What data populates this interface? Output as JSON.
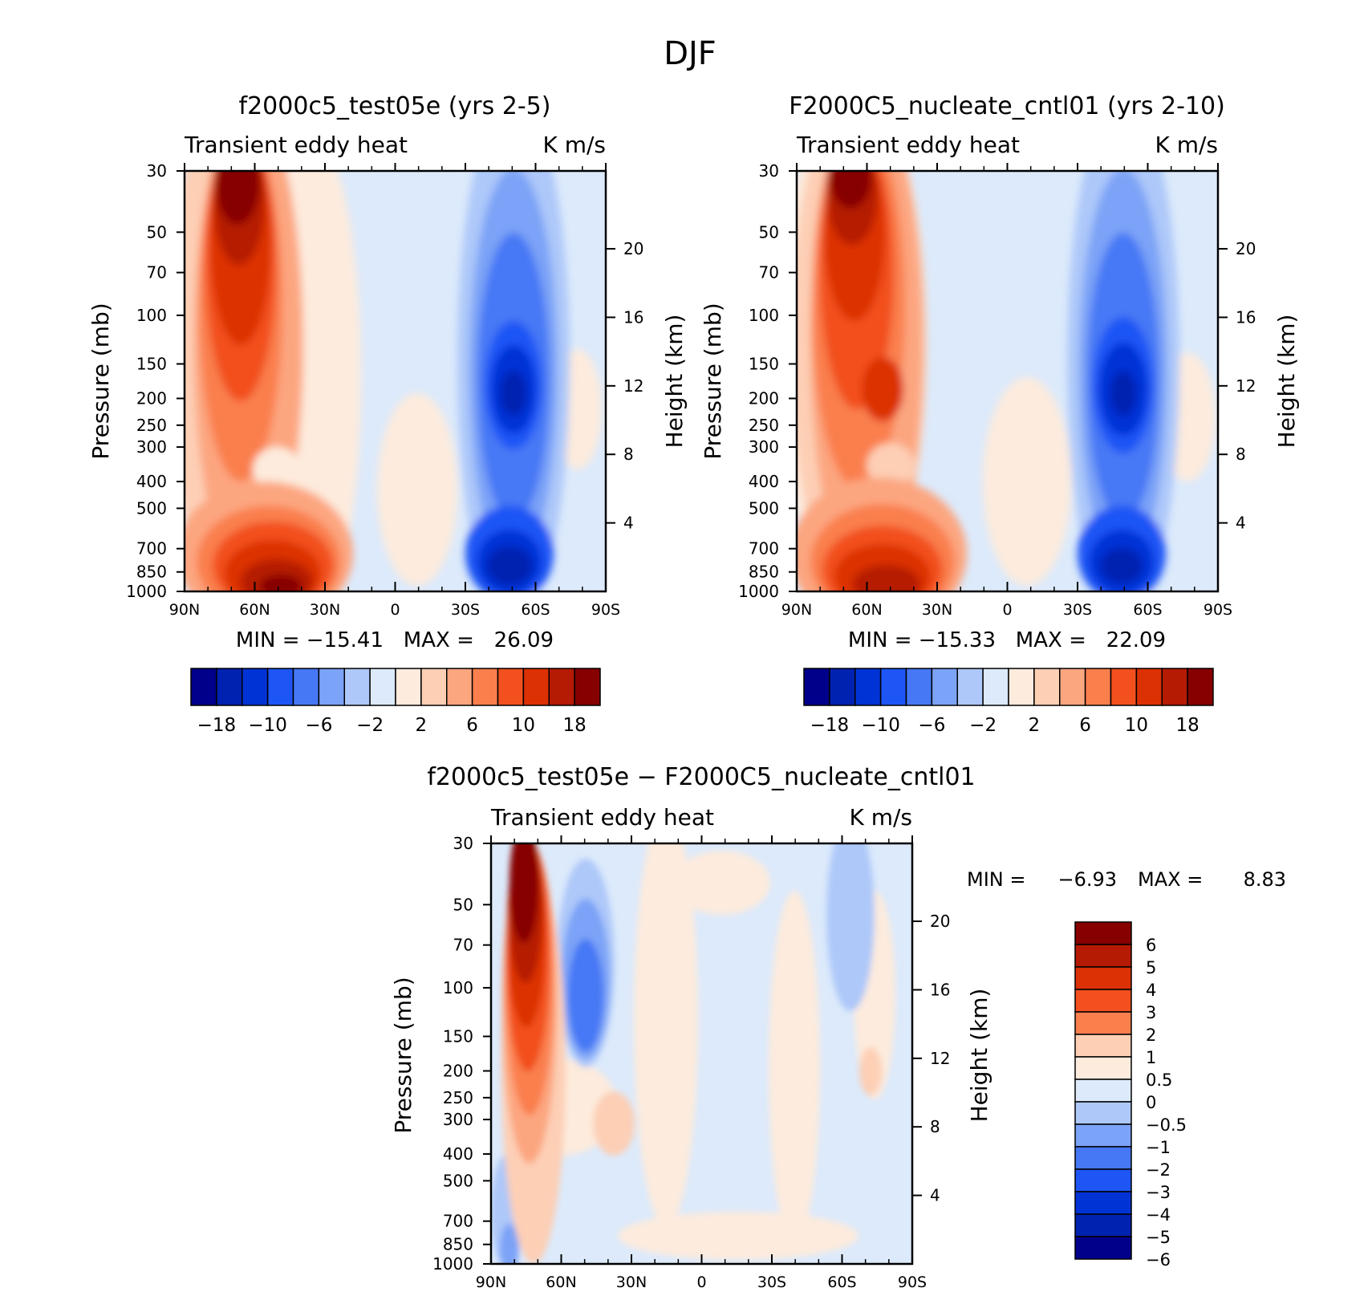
{
  "figure": {
    "title": "DJF"
  },
  "chart_data": [
    {
      "type": "contour",
      "title": "f2000c5_test05e (yrs 2-5)",
      "left_string": "Transient eddy heat",
      "right_string": "K m/s",
      "ylabel": "Pressure (mb)",
      "ylabel_right": "Height (km)",
      "x_ticks": [
        "90N",
        "60N",
        "30N",
        "0",
        "30S",
        "60S",
        "90S"
      ],
      "y_ticks": [
        "30",
        "50",
        "70",
        "100",
        "150",
        "200",
        "250",
        "300",
        "400",
        "500",
        "700",
        "850",
        "1000"
      ],
      "height_ticks": [
        "20",
        "16",
        "12",
        "8",
        "4"
      ],
      "min_max": "MIN = −15.41   MAX =   26.09",
      "colorbar": {
        "colors": [
          "#00008B",
          "#0022B0",
          "#0033D6",
          "#1E55F5",
          "#4678F5",
          "#7BA3F7",
          "#ADC8F9",
          "#DCEAFB",
          "#FDEBDD",
          "#FDCFB5",
          "#FCA680",
          "#FA7F4D",
          "#F2501E",
          "#DC3005",
          "#B51A02",
          "#870000"
        ],
        "labels": [
          "−18",
          "−10",
          "−6",
          "−2",
          "2",
          "6",
          "10",
          "18"
        ]
      }
    },
    {
      "type": "contour",
      "title": "F2000C5_nucleate_cntl01 (yrs 2-10)",
      "left_string": "Transient eddy heat",
      "right_string": "K m/s",
      "ylabel": "Pressure (mb)",
      "ylabel_right": "Height (km)",
      "x_ticks": [
        "90N",
        "60N",
        "30N",
        "0",
        "30S",
        "60S",
        "90S"
      ],
      "y_ticks": [
        "30",
        "50",
        "70",
        "100",
        "150",
        "200",
        "250",
        "300",
        "400",
        "500",
        "700",
        "850",
        "1000"
      ],
      "height_ticks": [
        "20",
        "16",
        "12",
        "8",
        "4"
      ],
      "min_max": "MIN = −15.33   MAX =   22.09",
      "colorbar": {
        "colors": [
          "#00008B",
          "#0022B0",
          "#0033D6",
          "#1E55F5",
          "#4678F5",
          "#7BA3F7",
          "#ADC8F9",
          "#DCEAFB",
          "#FDEBDD",
          "#FDCFB5",
          "#FCA680",
          "#FA7F4D",
          "#F2501E",
          "#DC3005",
          "#B51A02",
          "#870000"
        ],
        "labels": [
          "−18",
          "−10",
          "−6",
          "−2",
          "2",
          "6",
          "10",
          "18"
        ]
      }
    },
    {
      "type": "contour",
      "title": "f2000c5_test05e − F2000C5_nucleate_cntl01",
      "left_string": "Transient eddy heat",
      "right_string": "K m/s",
      "ylabel": "Pressure (mb)",
      "ylabel_right": "Height (km)",
      "x_ticks": [
        "90N",
        "60N",
        "30N",
        "0",
        "30S",
        "60S",
        "90S"
      ],
      "y_ticks": [
        "30",
        "50",
        "70",
        "100",
        "150",
        "200",
        "250",
        "300",
        "400",
        "500",
        "700",
        "850",
        "1000"
      ],
      "height_ticks": [
        "20",
        "16",
        "12",
        "8",
        "4"
      ],
      "min": "−6.93",
      "max": "8.83",
      "min_label": "MIN =",
      "max_label": "MAX =",
      "colorbar": {
        "colors": [
          "#870000",
          "#B51A02",
          "#DC3005",
          "#F2501E",
          "#FA7F4D",
          "#FDCFB5",
          "#FDEBDD",
          "#DCEAFB",
          "#ADC8F9",
          "#7BA3F7",
          "#4678F5",
          "#1E55F5",
          "#0033D6",
          "#0022B0",
          "#00008B"
        ],
        "labels": [
          "6",
          "5",
          "4",
          "3",
          "2",
          "1",
          "0.5",
          "0",
          "−0.5",
          "−1",
          "−2",
          "−3",
          "−4",
          "−5",
          "−6"
        ]
      }
    }
  ]
}
